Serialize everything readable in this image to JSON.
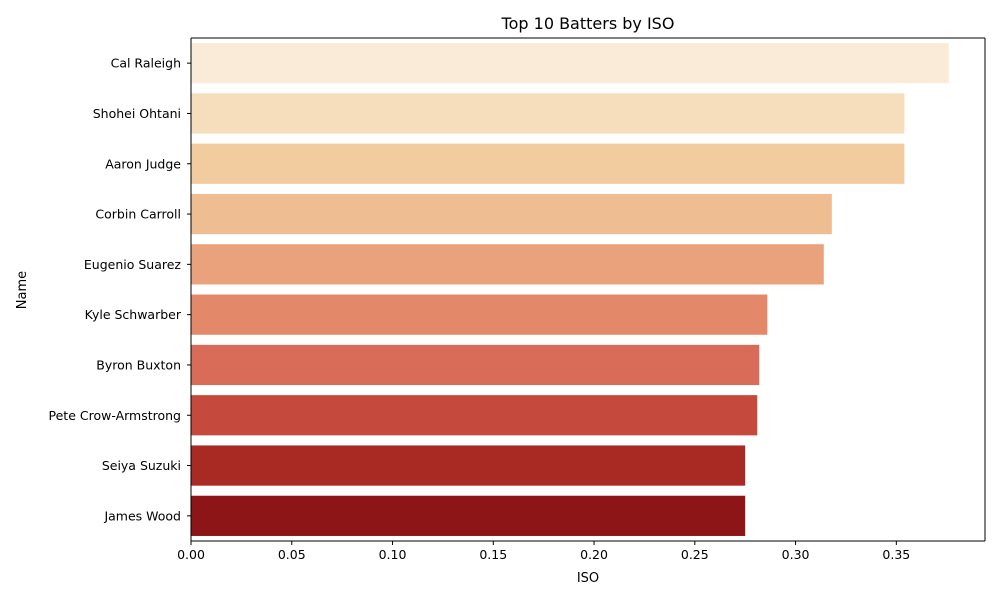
{
  "chart_data": {
    "type": "bar",
    "orientation": "horizontal",
    "title": "Top 10 Batters by ISO",
    "xlabel": "ISO",
    "ylabel": "Name",
    "xlim": [
      0,
      0.394
    ],
    "xticks": [
      "0.00",
      "0.05",
      "0.10",
      "0.15",
      "0.20",
      "0.25",
      "0.30",
      "0.35"
    ],
    "grid": false,
    "categories": [
      "Cal Raleigh",
      "Shohei Ohtani",
      "Aaron Judge",
      "Corbin Carroll",
      "Eugenio Suarez",
      "Kyle Schwarber",
      "Byron Buxton",
      "Pete Crow-Armstrong",
      "Seiya Suzuki",
      "James Wood"
    ],
    "values": [
      0.376,
      0.354,
      0.354,
      0.318,
      0.314,
      0.286,
      0.282,
      0.281,
      0.275,
      0.275
    ],
    "colors": [
      "#faebd8",
      "#f6ddbc",
      "#f2cc9f",
      "#efbd92",
      "#eaa27d",
      "#e38868",
      "#d86c59",
      "#c54a3d",
      "#a92923",
      "#8e1517"
    ]
  }
}
